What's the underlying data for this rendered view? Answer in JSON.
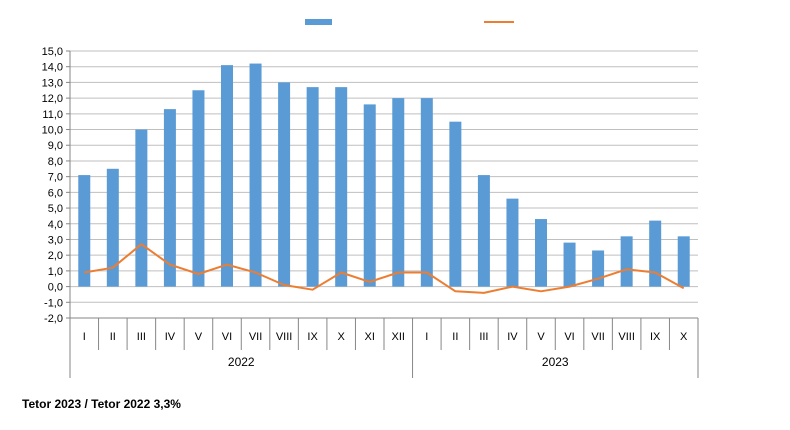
{
  "chart_data": {
    "type": "bar",
    "title": "",
    "ylim": [
      -2,
      15
    ],
    "y_step": 1,
    "grid": true,
    "legend_position": "top-center",
    "categories": [
      "I",
      "II",
      "III",
      "IV",
      "V",
      "VI",
      "VII",
      "VIII",
      "IX",
      "X",
      "XI",
      "XII",
      "I",
      "II",
      "III",
      "IV",
      "V",
      "VI",
      "VII",
      "VIII",
      "IX",
      "X"
    ],
    "groups": [
      {
        "label": "2022",
        "start": 0,
        "count": 12
      },
      {
        "label": "2023",
        "start": 12,
        "count": 10
      }
    ],
    "series": [
      {
        "type": "bar",
        "color": "#5b9bd5",
        "values": [
          7.1,
          7.5,
          10.0,
          11.3,
          12.5,
          14.1,
          14.2,
          13.0,
          12.7,
          12.7,
          11.6,
          12.0,
          12.0,
          10.5,
          7.1,
          5.6,
          4.3,
          2.8,
          2.3,
          3.2,
          4.2,
          3.2
        ]
      },
      {
        "type": "line",
        "color": "#ed7d31",
        "values": [
          0.9,
          1.2,
          2.7,
          1.4,
          0.8,
          1.4,
          0.9,
          0.1,
          -0.2,
          0.9,
          0.3,
          0.9,
          0.9,
          -0.3,
          -0.4,
          0.0,
          -0.3,
          0.0,
          0.5,
          1.1,
          0.9,
          -0.1
        ]
      }
    ]
  },
  "footnote": "Tetor 2023 / Tetor 2022  3,3%"
}
